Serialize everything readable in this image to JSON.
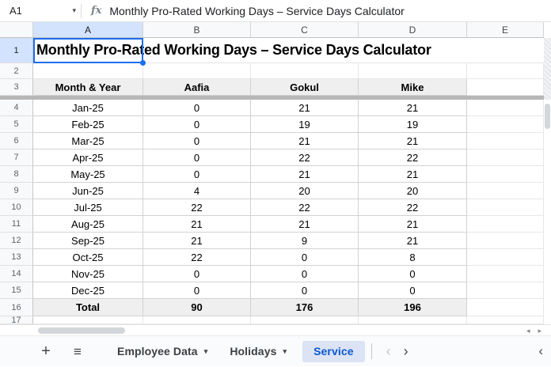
{
  "formula_bar": {
    "cell_ref": "A1",
    "fx_label": "fx",
    "formula": "Monthly Pro-Rated Working Days – Service Days Calculator"
  },
  "grid": {
    "column_headers": [
      "A",
      "B",
      "C",
      "D",
      "E"
    ],
    "row_numbers": [
      "1",
      "2",
      "3",
      "4",
      "5",
      "6",
      "7",
      "8",
      "9",
      "10",
      "11",
      "12",
      "13",
      "14",
      "15",
      "16",
      "17"
    ],
    "title": "Monthly Pro-Rated Working Days – Service Days Calculator",
    "table": {
      "headers": [
        "Month & Year",
        "Aafia",
        "Gokul",
        "Mike"
      ],
      "rows": [
        [
          "Jan-25",
          "0",
          "21",
          "21"
        ],
        [
          "Feb-25",
          "0",
          "19",
          "19"
        ],
        [
          "Mar-25",
          "0",
          "21",
          "21"
        ],
        [
          "Apr-25",
          "0",
          "22",
          "22"
        ],
        [
          "May-25",
          "0",
          "21",
          "21"
        ],
        [
          "Jun-25",
          "4",
          "20",
          "20"
        ],
        [
          "Jul-25",
          "22",
          "22",
          "22"
        ],
        [
          "Aug-25",
          "21",
          "21",
          "21"
        ],
        [
          "Sep-25",
          "21",
          "9",
          "21"
        ],
        [
          "Oct-25",
          "22",
          "0",
          "8"
        ],
        [
          "Nov-25",
          "0",
          "0",
          "0"
        ],
        [
          "Dec-25",
          "0",
          "0",
          "0"
        ]
      ],
      "total_row": [
        "Total",
        "90",
        "176",
        "196"
      ]
    }
  },
  "sheet_bar": {
    "tabs": [
      {
        "label": "Employee Data",
        "active": false
      },
      {
        "label": "Holidays",
        "active": false
      },
      {
        "label": "Service",
        "active": true
      }
    ]
  },
  "icons": {
    "dropdown": "▾",
    "plus": "+",
    "menu": "≡",
    "chevron_left": "‹",
    "chevron_right": "›",
    "scroll_left": "◂",
    "scroll_right": "▸"
  },
  "colors": {
    "accent_blue": "#1a6ef0",
    "active_tab_text": "#0b57d0",
    "active_tab_bg": "#dbe3f5",
    "selected_header_bg": "#d3e3fd",
    "table_header_bg": "#efefef",
    "freeze_bar": "#b7b7b7"
  }
}
